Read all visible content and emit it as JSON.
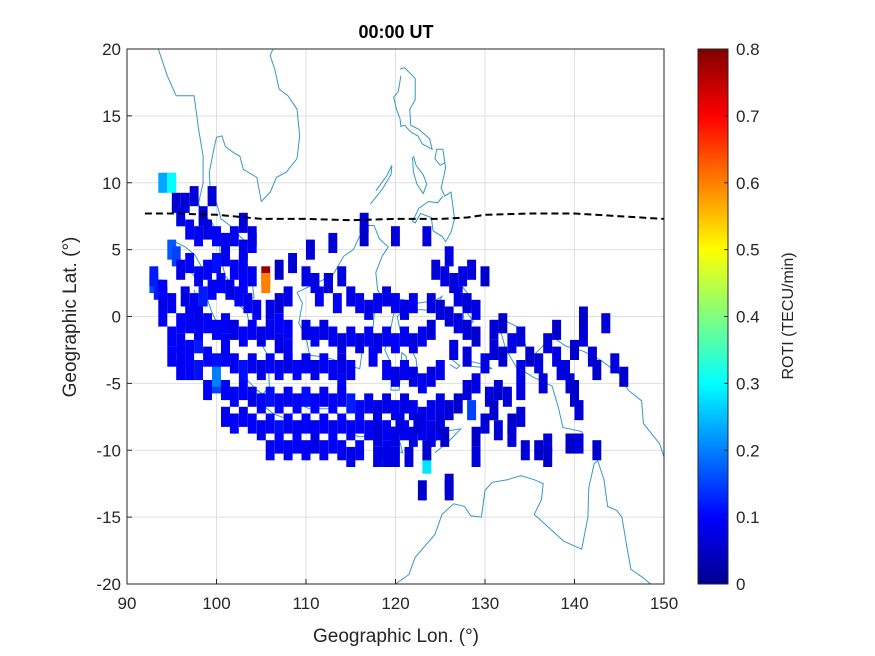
{
  "chart_data": {
    "type": "heatmap",
    "title": "00:00 UT",
    "xlabel": "Geographic Lon. (°)",
    "ylabel": "Geographic Lat. (°)",
    "xlim": [
      90,
      150
    ],
    "ylim": [
      -20,
      20
    ],
    "xticks": [
      90,
      100,
      110,
      120,
      130,
      140,
      150
    ],
    "yticks": [
      -20,
      -15,
      -10,
      -5,
      0,
      5,
      10,
      15,
      20
    ],
    "xtick_labels": [
      "90",
      "100",
      "110",
      "120",
      "130",
      "140",
      "150"
    ],
    "ytick_labels": [
      "-20",
      "-15",
      "-10",
      "-5",
      "0",
      "5",
      "10",
      "15",
      "20"
    ],
    "grid": true,
    "colorbar": {
      "label": "ROTI (TECU/min)",
      "limits": [
        0,
        0.8
      ],
      "ticks": [
        0,
        0.1,
        0.2,
        0.3,
        0.4,
        0.5,
        0.6,
        0.7,
        0.8
      ],
      "tick_labels": [
        "0",
        "0.1",
        "0.2",
        "0.3",
        "0.4",
        "0.5",
        "0.6",
        "0.7",
        "0.8"
      ],
      "colormap": "jet"
    },
    "cell_size_deg": [
      1,
      1.5
    ],
    "cells": [
      [
        94,
        10,
        0.23
      ],
      [
        95,
        10,
        0.3
      ],
      [
        97.5,
        9,
        0.07
      ],
      [
        99.5,
        9,
        0.07
      ],
      [
        95.5,
        8.5,
        0.06
      ],
      [
        96.5,
        8.5,
        0.07
      ],
      [
        98.5,
        7.5,
        0.06
      ],
      [
        99,
        6.5,
        0.08
      ],
      [
        100,
        6,
        0.1
      ],
      [
        101,
        5.5,
        0.1
      ],
      [
        102,
        6,
        0.09
      ],
      [
        103,
        5,
        0.08
      ],
      [
        104,
        5.5,
        0.1
      ],
      [
        105.5,
        3,
        0.78
      ],
      [
        105.5,
        2.5,
        0.6
      ],
      [
        95,
        5,
        0.17
      ],
      [
        95.5,
        4.5,
        0.15
      ],
      [
        96,
        3.5,
        0.08
      ],
      [
        97,
        4,
        0.1
      ],
      [
        98,
        3,
        0.09
      ],
      [
        93,
        2.5,
        0.16
      ],
      [
        93.5,
        2,
        0.12
      ],
      [
        94,
        1.5,
        0.08
      ],
      [
        95,
        1,
        0.09
      ],
      [
        96.5,
        1.5,
        0.08
      ],
      [
        97.5,
        1,
        0.09
      ],
      [
        98.5,
        1.5,
        0.12
      ],
      [
        99.5,
        2,
        0.1
      ],
      [
        100.5,
        2.5,
        0.09
      ],
      [
        101.5,
        2,
        0.08
      ],
      [
        102.5,
        1.5,
        0.1
      ],
      [
        103.5,
        1,
        0.09
      ],
      [
        104.5,
        0.5,
        0.09
      ],
      [
        106,
        0.5,
        0.08
      ],
      [
        107,
        1,
        0.07
      ],
      [
        108,
        1.5,
        0.08
      ],
      [
        96,
        -0.5,
        0.1
      ],
      [
        97,
        -0.5,
        0.09
      ],
      [
        98,
        0,
        0.08
      ],
      [
        99,
        -0.5,
        0.1
      ],
      [
        100,
        -1,
        0.1
      ],
      [
        101,
        -0.5,
        0.09
      ],
      [
        102,
        -1,
        0.08
      ],
      [
        103,
        -1.5,
        0.1
      ],
      [
        104,
        -1,
        0.09
      ],
      [
        105,
        -1.5,
        0.08
      ],
      [
        106,
        -1,
        0.09
      ],
      [
        107,
        -0.5,
        0.1
      ],
      [
        108,
        -1,
        0.09
      ],
      [
        95,
        -1.5,
        0.1
      ],
      [
        96,
        -2,
        0.09
      ],
      [
        97,
        -2.5,
        0.1
      ],
      [
        98,
        -2,
        0.12
      ],
      [
        99,
        -3,
        0.1
      ],
      [
        100,
        -3.5,
        0.11
      ],
      [
        101,
        -3,
        0.1
      ],
      [
        102,
        -3.5,
        0.09
      ],
      [
        103,
        -4,
        0.11
      ],
      [
        104,
        -3.5,
        0.09
      ],
      [
        105,
        -4,
        0.08
      ],
      [
        106,
        -3.5,
        0.1
      ],
      [
        107,
        -4,
        0.09
      ],
      [
        108,
        -3.5,
        0.08
      ],
      [
        109,
        -4,
        0.1
      ],
      [
        110,
        -3.5,
        0.09
      ],
      [
        111,
        -4,
        0.08
      ],
      [
        112,
        -3.5,
        0.1
      ],
      [
        113,
        -4,
        0.09
      ],
      [
        114,
        -3.5,
        0.08
      ],
      [
        115,
        -4,
        0.09
      ],
      [
        99,
        -5.5,
        0.09
      ],
      [
        100,
        -5,
        0.15
      ],
      [
        101,
        -5.5,
        0.1
      ],
      [
        102,
        -6,
        0.09
      ],
      [
        103,
        -5.5,
        0.1
      ],
      [
        104,
        -6,
        0.08
      ],
      [
        105,
        -6.5,
        0.1
      ],
      [
        106,
        -6,
        0.11
      ],
      [
        107,
        -6.5,
        0.1
      ],
      [
        108,
        -6,
        0.09
      ],
      [
        109,
        -6.5,
        0.1
      ],
      [
        110,
        -6,
        0.11
      ],
      [
        111,
        -6.5,
        0.1
      ],
      [
        112,
        -6,
        0.09
      ],
      [
        113,
        -6.5,
        0.1
      ],
      [
        114,
        -6,
        0.09
      ],
      [
        115,
        -6.5,
        0.12
      ],
      [
        116,
        -7,
        0.1
      ],
      [
        117,
        -6.5,
        0.09
      ],
      [
        118,
        -7,
        0.08
      ],
      [
        101,
        -7.5,
        0.09
      ],
      [
        102,
        -8,
        0.1
      ],
      [
        103,
        -7.5,
        0.09
      ],
      [
        104,
        -8,
        0.1
      ],
      [
        105,
        -8.5,
        0.09
      ],
      [
        106,
        -8,
        0.1
      ],
      [
        107,
        -8.5,
        0.11
      ],
      [
        108,
        -8,
        0.1
      ],
      [
        109,
        -8.5,
        0.09
      ],
      [
        110,
        -8,
        0.1
      ],
      [
        111,
        -8.5,
        0.09
      ],
      [
        112,
        -8,
        0.1
      ],
      [
        113,
        -8.5,
        0.09
      ],
      [
        114,
        -8,
        0.1
      ],
      [
        115,
        -8.5,
        0.09
      ],
      [
        116,
        -8,
        0.1
      ],
      [
        117,
        -8.5,
        0.09
      ],
      [
        118,
        -8,
        0.08
      ],
      [
        106,
        -10,
        0.09
      ],
      [
        107,
        -9.5,
        0.1
      ],
      [
        108,
        -10,
        0.09
      ],
      [
        109,
        -9.5,
        0.1
      ],
      [
        110,
        -10,
        0.09
      ],
      [
        111,
        -9.5,
        0.08
      ],
      [
        112,
        -10,
        0.09
      ],
      [
        113,
        -9.5,
        0.1
      ],
      [
        114,
        -10,
        0.09
      ],
      [
        115,
        -10.5,
        0.08
      ],
      [
        116,
        -10,
        0.09
      ],
      [
        118,
        -10.5,
        0.08
      ],
      [
        119,
        -10,
        0.09
      ],
      [
        120,
        -10.5,
        0.08
      ],
      [
        108.5,
        4,
        0.07
      ],
      [
        110,
        3,
        0.08
      ],
      [
        111.5,
        1.5,
        0.09
      ],
      [
        112.5,
        2.5,
        0.08
      ],
      [
        113.5,
        1,
        0.09
      ],
      [
        115,
        1.5,
        0.08
      ],
      [
        116,
        1,
        0.09
      ],
      [
        117,
        0.5,
        0.08
      ],
      [
        118,
        1,
        0.09
      ],
      [
        119,
        1.5,
        0.08
      ],
      [
        120,
        1,
        0.09
      ],
      [
        121,
        0.5,
        0.08
      ],
      [
        122,
        1,
        0.09
      ],
      [
        110,
        -1,
        0.08
      ],
      [
        111,
        -1.5,
        0.09
      ],
      [
        112,
        -1,
        0.08
      ],
      [
        113,
        -1.5,
        0.09
      ],
      [
        114,
        -2,
        0.08
      ],
      [
        115,
        -1.5,
        0.09
      ],
      [
        116,
        -2,
        0.08
      ],
      [
        117,
        -1.5,
        0.09
      ],
      [
        118,
        -2,
        0.08
      ],
      [
        119,
        -1.5,
        0.09
      ],
      [
        120,
        -2,
        0.1
      ],
      [
        121,
        -1.5,
        0.09
      ],
      [
        122,
        -2,
        0.08
      ],
      [
        123,
        -1.5,
        0.09
      ],
      [
        119,
        -4,
        0.09
      ],
      [
        120,
        -4.5,
        0.08
      ],
      [
        121,
        -4,
        0.09
      ],
      [
        122,
        -4.5,
        0.08
      ],
      [
        123,
        -5,
        0.09
      ],
      [
        124,
        -4.5,
        0.08
      ],
      [
        125,
        -4,
        0.09
      ],
      [
        119,
        -6.5,
        0.08
      ],
      [
        120,
        -7,
        0.09
      ],
      [
        121,
        -6.5,
        0.08
      ],
      [
        122,
        -7,
        0.09
      ],
      [
        123,
        -7.5,
        0.08
      ],
      [
        124,
        -7,
        0.09
      ],
      [
        125,
        -6.5,
        0.08
      ],
      [
        119,
        -8.5,
        0.09
      ],
      [
        120,
        -9,
        0.08
      ],
      [
        121,
        -8.5,
        0.09
      ],
      [
        122,
        -9,
        0.08
      ],
      [
        123,
        -8.5,
        0.09
      ],
      [
        124,
        -9,
        0.08
      ],
      [
        125,
        -8.5,
        0.09
      ],
      [
        110.5,
        5,
        0.07
      ],
      [
        113,
        5.5,
        0.07
      ],
      [
        116.5,
        7,
        0.07
      ],
      [
        116.5,
        6,
        0.06
      ],
      [
        112.5,
        2.5,
        0.07
      ],
      [
        114,
        3,
        0.08
      ],
      [
        120,
        6,
        0.07
      ],
      [
        123.5,
        6,
        0.07
      ],
      [
        126,
        4.5,
        0.08
      ],
      [
        124.5,
        3.5,
        0.07
      ],
      [
        125.5,
        3,
        0.08
      ],
      [
        126.5,
        2.5,
        0.07
      ],
      [
        127.5,
        3,
        0.08
      ],
      [
        128.5,
        3.5,
        0.07
      ],
      [
        130,
        3,
        0.06
      ],
      [
        127,
        1.5,
        0.08
      ],
      [
        128,
        1,
        0.07
      ],
      [
        129,
        0.5,
        0.08
      ],
      [
        126,
        0,
        0.07
      ],
      [
        127,
        -0.5,
        0.08
      ],
      [
        128,
        -1,
        0.07
      ],
      [
        129,
        -1.5,
        0.06
      ],
      [
        124,
        1,
        0.08
      ],
      [
        125,
        0.5,
        0.07
      ],
      [
        124,
        -1,
        0.07
      ],
      [
        126.5,
        -2.5,
        0.08
      ],
      [
        128,
        -3,
        0.07
      ],
      [
        130,
        -3.5,
        0.08
      ],
      [
        131,
        -1,
        0.07
      ],
      [
        132,
        -0.5,
        0.06
      ],
      [
        131,
        -2.5,
        0.07
      ],
      [
        132,
        -3,
        0.06
      ],
      [
        133,
        -2,
        0.08
      ],
      [
        134,
        -1.5,
        0.07
      ],
      [
        135,
        -3,
        0.06
      ],
      [
        136,
        -3.5,
        0.07
      ],
      [
        134,
        -4,
        0.08
      ],
      [
        137,
        -2,
        0.07
      ],
      [
        138,
        -1,
        0.06
      ],
      [
        138,
        -3,
        0.08
      ],
      [
        139,
        -4,
        0.07
      ],
      [
        140,
        -2.5,
        0.06
      ],
      [
        141,
        -1.5,
        0.07
      ],
      [
        141,
        0,
        0.06
      ],
      [
        143.5,
        -0.5,
        0.07
      ],
      [
        138.5,
        -4,
        0.08
      ],
      [
        139.5,
        -5,
        0.07
      ],
      [
        140,
        -5.5,
        0.06
      ],
      [
        142,
        -3,
        0.07
      ],
      [
        142.5,
        -4,
        0.06
      ],
      [
        144.5,
        -3.5,
        0.07
      ],
      [
        145.5,
        -4.5,
        0.06
      ],
      [
        136.5,
        -5,
        0.07
      ],
      [
        134,
        -5.5,
        0.08
      ],
      [
        132.5,
        -6,
        0.07
      ],
      [
        131.5,
        -5.5,
        0.06
      ],
      [
        130.5,
        -6,
        0.07
      ],
      [
        129,
        -5,
        0.08
      ],
      [
        128,
        -5.5,
        0.07
      ],
      [
        127,
        -6.5,
        0.06
      ],
      [
        126,
        -7,
        0.07
      ],
      [
        128.5,
        -7,
        0.15
      ],
      [
        130,
        -8,
        0.07
      ],
      [
        131,
        -7,
        0.06
      ],
      [
        131.5,
        -8.5,
        0.07
      ],
      [
        133,
        -8,
        0.06
      ],
      [
        134,
        -7.5,
        0.07
      ],
      [
        140,
        -6,
        0.06
      ],
      [
        140.5,
        -7,
        0.07
      ],
      [
        133,
        -9,
        0.07
      ],
      [
        136,
        -10,
        0.06
      ],
      [
        137,
        -9.5,
        0.07
      ],
      [
        129,
        -9,
        0.06
      ],
      [
        129,
        -10.5,
        0.07
      ],
      [
        134.5,
        -10,
        0.07
      ],
      [
        137,
        -10.5,
        0.06
      ],
      [
        139.5,
        -9.5,
        0.06
      ],
      [
        140.5,
        -9.5,
        0.07
      ],
      [
        142.5,
        -10,
        0.06
      ],
      [
        123.5,
        -11,
        0.28
      ],
      [
        123.5,
        -10,
        0.06
      ],
      [
        121.5,
        -10.5,
        0.07
      ],
      [
        119,
        -10.5,
        0.08
      ],
      [
        123,
        -13,
        0.06
      ],
      [
        126,
        -12.5,
        0.07
      ],
      [
        126,
        -13,
        0.06
      ],
      [
        122.5,
        -8,
        0.07
      ],
      [
        124,
        -8.5,
        0.08
      ],
      [
        125,
        -8,
        0.07
      ],
      [
        125.5,
        -9,
        0.06
      ],
      [
        120.5,
        -8,
        0.08
      ],
      [
        118,
        -9,
        0.07
      ],
      [
        111,
        2.5,
        0.08
      ],
      [
        108,
        -2.5,
        0.09
      ],
      [
        107,
        -2,
        0.08
      ],
      [
        117.5,
        -3,
        0.09
      ],
      [
        114,
        -5,
        0.09
      ],
      [
        107,
        3.5,
        0.06
      ],
      [
        103,
        4,
        0.09
      ],
      [
        102,
        3.5,
        0.1
      ],
      [
        101,
        4.5,
        0.09
      ],
      [
        100,
        4,
        0.11
      ],
      [
        99,
        3.5,
        0.1
      ],
      [
        98,
        6,
        0.09
      ],
      [
        97,
        6.5,
        0.1
      ],
      [
        96,
        7.5,
        0.08
      ],
      [
        103,
        7,
        0.07
      ],
      [
        104,
        6,
        0.08
      ],
      [
        104,
        3,
        0.09
      ],
      [
        103,
        2.5,
        0.1
      ],
      [
        97,
        0,
        0.1
      ],
      [
        96,
        -4,
        0.09
      ],
      [
        97,
        -4,
        0.1
      ],
      [
        98,
        -4,
        0.11
      ],
      [
        100,
        -4.5,
        0.2
      ],
      [
        101,
        -2,
        0.1
      ],
      [
        98,
        -1,
        0.09
      ],
      [
        94,
        0,
        0.09
      ],
      [
        93,
        3,
        0.12
      ],
      [
        94,
        2,
        0.1
      ],
      [
        95,
        -3,
        0.1
      ],
      [
        96,
        -3,
        0.09
      ]
    ],
    "boundary_line": {
      "style": "dashed",
      "color": "#000000",
      "x": [
        92,
        95,
        100,
        105,
        110,
        115,
        120,
        125,
        128,
        130,
        135,
        140,
        145,
        150
      ],
      "y": [
        7.7,
        7.7,
        7.6,
        7.3,
        7.3,
        7.2,
        7.3,
        7.3,
        7.4,
        7.6,
        7.7,
        7.7,
        7.5,
        7.3
      ]
    },
    "coastline_color": "#3796c8"
  }
}
